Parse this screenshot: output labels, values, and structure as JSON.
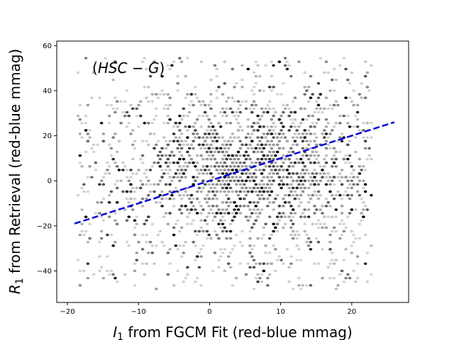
{
  "chart_data": {
    "type": "hexbin",
    "annotation": {
      "prefix": "(",
      "main": "HSC − G",
      "suffix": ")"
    },
    "xlabel": {
      "symbol": "I",
      "sub": "1",
      "rest": " from FGCM Fit (red-blue mmag)"
    },
    "ylabel": {
      "symbol": "R",
      "sub": "1",
      "rest": " from Retrieval (red-blue mmag)"
    },
    "xlim": [
      -21.5,
      28
    ],
    "ylim": [
      -54,
      62
    ],
    "xticks": [
      -20,
      -10,
      0,
      10,
      20
    ],
    "yticks": [
      -40,
      -20,
      0,
      20,
      40,
      60
    ],
    "xtick_labels": [
      "−20",
      "−10",
      "0",
      "10",
      "20"
    ],
    "ytick_labels": [
      "−40",
      "−20",
      "0",
      "20",
      "40",
      "60"
    ],
    "density_center": [
      6,
      5
    ],
    "density_spread": [
      11,
      20
    ],
    "point_range_x": [
      -18.5,
      23
    ],
    "point_range_y": [
      -48,
      56
    ],
    "fit_line": {
      "x": [
        -19,
        26
      ],
      "y": [
        -19,
        26
      ],
      "color": "#0000dd",
      "style": "dashed"
    },
    "colors": {
      "low": "#d3d3d3",
      "high": "#000000",
      "fit": "#0000dd"
    }
  }
}
